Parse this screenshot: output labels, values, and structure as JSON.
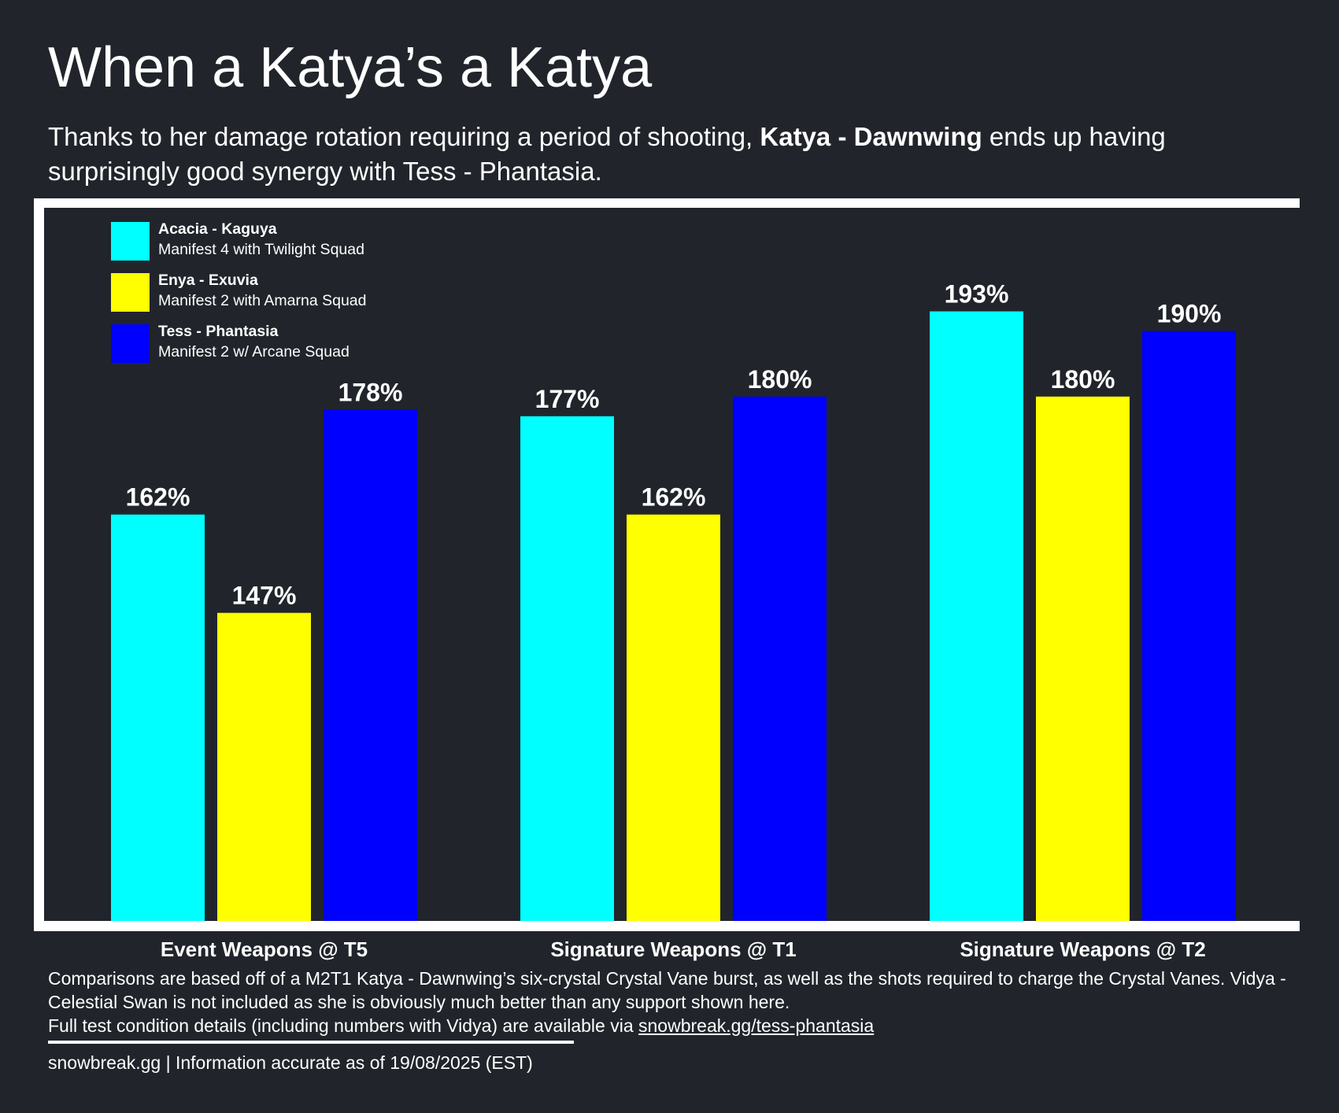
{
  "chart_data": {
    "type": "bar",
    "title": "When a Katya’s a Katya",
    "subtitle": [
      "Thanks to her damage rotation requiring a period of shooting, ",
      "Katya - Dawnwing",
      " ends up having surprisingly good synergy with Tess - Phantasia."
    ],
    "categories": [
      "Event Weapons @ T5",
      "Signature Weapons @ T1",
      "Signature Weapons @ T2"
    ],
    "series": [
      {
        "name": "Acacia - Kaguya",
        "description": "Manifest 4 with Twilight Squad",
        "color": "#00ffff",
        "values": [
          162,
          177,
          193
        ],
        "value_labels": [
          "162%",
          "177%",
          "193%"
        ]
      },
      {
        "name": "Enya - Exuvia",
        "description": "Manifest 2 with Amarna Squad",
        "color": "#ffff00",
        "values": [
          147,
          162,
          180
        ],
        "value_labels": [
          "147%",
          "162%",
          "180%"
        ]
      },
      {
        "name": "Tess - Phantasia",
        "description": "Manifest 2 w/ Arcane Squad",
        "color": "#0000ff",
        "values": [
          178,
          180,
          190
        ],
        "value_labels": [
          "178%",
          "180%",
          "190%"
        ]
      }
    ],
    "ylim": [
      100,
      210
    ],
    "footnote": "Comparisons are based off of a M2T1 Katya - Dawnwing’s six-crystal Crystal Vane burst, as well as the shots required to charge the Crystal Vanes. Vidya - Celestial Swan is not included as she is obviously much better than any support shown here.",
    "footnote_link_intro": "Full test condition details (including numbers with Vidya) are available via ",
    "footnote_link": "snowbreak.gg/tess-phantasia",
    "credit": "snowbreak.gg | Information accurate as of 19/08/2025 (EST)"
  }
}
